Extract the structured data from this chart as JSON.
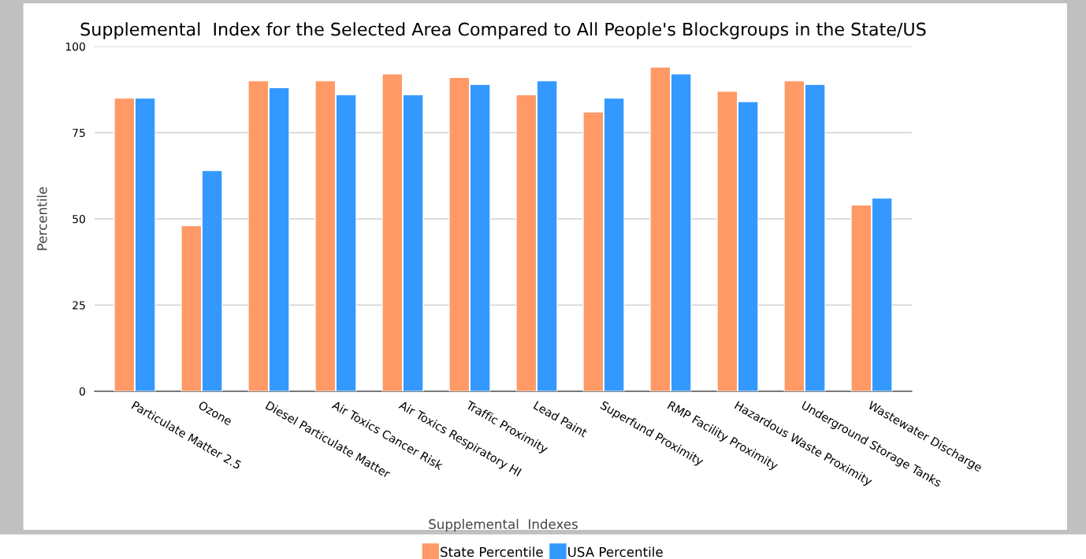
{
  "chart_data": {
    "type": "bar",
    "title": "Supplemental  Index for the Selected Area Compared to All People's Blockgroups in the State/US",
    "xlabel": "Supplemental  Indexes",
    "ylabel": "Percentile",
    "categories": [
      "Particulate Matter 2.5",
      "Ozone",
      "Diesel Particulate Matter",
      "Air Toxics Cancer Risk",
      "Air Toxics Respiratory HI",
      "Traffic Proximity",
      "Lead Paint",
      "Superfund Proximity",
      "RMP Facility Proximity",
      "Hazardous Waste Proximity",
      "Underground Storage Tanks",
      "Wastewater Discharge"
    ],
    "series": [
      {
        "name": "State Percentile",
        "color": "#ff9966",
        "values": [
          85,
          48,
          90,
          90,
          92,
          91,
          86,
          81,
          94,
          87,
          90,
          54
        ]
      },
      {
        "name": "USA Percentile",
        "color": "#3399ff",
        "values": [
          85,
          64,
          88,
          86,
          86,
          89,
          90,
          85,
          92,
          84,
          89,
          56
        ]
      }
    ],
    "ylim": [
      0,
      100
    ],
    "yticks": [
      0,
      25,
      50,
      75,
      100
    ],
    "grid": "y",
    "legend": "bottom"
  }
}
